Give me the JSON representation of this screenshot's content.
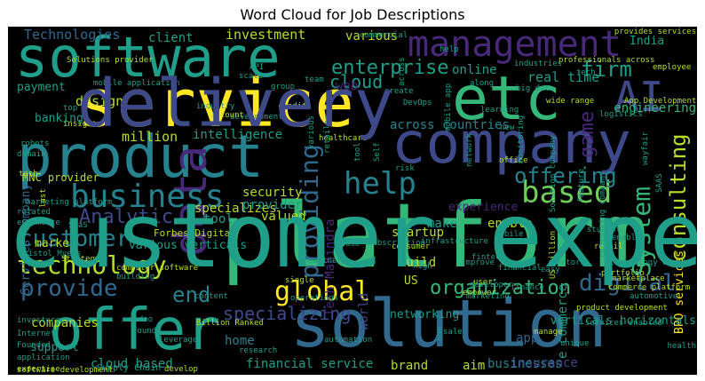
{
  "title": "Word Cloud for Job Descriptions",
  "palette": {
    "yellow": "#fde725",
    "yellowgreen": "#b5de2b",
    "lightgreen": "#6ece58",
    "green": "#35b779",
    "teal": "#1f9e89",
    "blueteal": "#26828e",
    "blue": "#31688e",
    "indigo": "#3e4989",
    "purple": "#482878",
    "darkpurple": "#440154",
    "background": "#000000"
  },
  "words": [
    {
      "text": "service",
      "color": "yellow"
    },
    {
      "text": "platform",
      "color": "green"
    },
    {
      "text": "solution",
      "color": "blue"
    },
    {
      "text": "company",
      "color": "indigo"
    },
    {
      "text": "product",
      "color": "blueteal"
    },
    {
      "text": "software",
      "color": "teal"
    },
    {
      "text": "offer",
      "color": "teal"
    },
    {
      "text": "etc",
      "color": "green"
    },
    {
      "text": "management",
      "color": "purple"
    },
    {
      "text": "AI",
      "color": "indigo"
    },
    {
      "text": "data",
      "color": "purple"
    },
    {
      "text": "business",
      "color": "blueteal"
    },
    {
      "text": "based",
      "color": "lightgreen"
    },
    {
      "text": "help",
      "color": "blueteal"
    },
    {
      "text": "technology",
      "color": "yellowgreen"
    },
    {
      "text": "customer",
      "color": "blueteal"
    },
    {
      "text": "provide",
      "color": "blue"
    },
    {
      "text": "global",
      "color": "yellow"
    },
    {
      "text": "digital",
      "color": "blue"
    },
    {
      "text": "organization",
      "color": "green"
    },
    {
      "text": "consulting",
      "color": "yellowgreen"
    },
    {
      "text": "System",
      "color": "green"
    },
    {
      "text": "providing",
      "color": "blue"
    },
    {
      "text": "offering",
      "color": "blueteal"
    },
    {
      "text": "enterprise",
      "color": "teal"
    },
    {
      "text": "end",
      "color": "blueteal"
    },
    {
      "text": "Analytic",
      "color": "indigo"
    },
    {
      "text": "firm",
      "color": "teal"
    },
    {
      "text": "game",
      "color": "purple"
    },
    {
      "text": "cloud",
      "color": "teal"
    },
    {
      "text": "specializing",
      "color": "indigo"
    },
    {
      "text": "investment",
      "color": "yellowgreen"
    },
    {
      "text": "Technologies",
      "color": "blue"
    },
    {
      "text": "client",
      "color": "teal"
    },
    {
      "text": "various",
      "color": "yellowgreen"
    },
    {
      "text": "India",
      "color": "teal"
    },
    {
      "text": "payment",
      "color": "teal"
    },
    {
      "text": "design",
      "color": "yellowgreen"
    },
    {
      "text": "banking",
      "color": "teal"
    },
    {
      "text": "million",
      "color": "yellowgreen"
    },
    {
      "text": "intelligence",
      "color": "teal"
    },
    {
      "text": "web",
      "color": "purple"
    },
    {
      "text": "real time",
      "color": "teal"
    },
    {
      "text": "online",
      "color": "teal"
    },
    {
      "text": "engineering",
      "color": "green"
    },
    {
      "text": "across countries",
      "color": "blueteal"
    },
    {
      "text": "specializes",
      "color": "yellowgreen"
    },
    {
      "text": "security",
      "color": "yellowgreen"
    },
    {
      "text": "provider",
      "color": "teal"
    },
    {
      "text": "valued",
      "color": "yellowgreen"
    },
    {
      "text": "tool",
      "color": "teal"
    },
    {
      "text": "market",
      "color": "yellowgreen"
    },
    {
      "text": "companies",
      "color": "yellowgreen"
    },
    {
      "text": "support",
      "color": "teal"
    },
    {
      "text": "cloud based",
      "color": "teal"
    },
    {
      "text": "financial service",
      "color": "teal"
    },
    {
      "text": "brand",
      "color": "yellowgreen"
    },
    {
      "text": "aim",
      "color": "yellowgreen"
    },
    {
      "text": "businesses",
      "color": "blueteal"
    },
    {
      "text": "insurance",
      "color": "indigo"
    },
    {
      "text": "home",
      "color": "blueteal"
    },
    {
      "text": "app",
      "color": "blue"
    },
    {
      "text": "world",
      "color": "indigo"
    },
    {
      "text": "networking",
      "color": "teal"
    },
    {
      "text": "build",
      "color": "yellowgreen"
    },
    {
      "text": "US",
      "color": "yellowgreen"
    },
    {
      "text": "startup",
      "color": "yellowgreen"
    },
    {
      "text": "Tech Mahindra",
      "color": "purple"
    },
    {
      "text": "make",
      "color": "teal"
    },
    {
      "text": "enable",
      "color": "yellowgreen"
    },
    {
      "text": "experience",
      "color": "purple"
    },
    {
      "text": "e commerce",
      "color": "teal"
    },
    {
      "text": "BPO services",
      "color": "yellow"
    },
    {
      "text": "verticals horizontals",
      "color": "teal"
    },
    {
      "text": "Services company",
      "color": "blue"
    },
    {
      "text": "various verticals",
      "color": "teal"
    },
    {
      "text": "MNC provider",
      "color": "yellowgreen"
    },
    {
      "text": "Forbes Digital",
      "color": "yellowgreen"
    },
    {
      "text": "Supply Chain",
      "color": "teal"
    },
    {
      "text": "software development",
      "color": "yellowgreen"
    },
    {
      "text": "application",
      "color": "teal"
    },
    {
      "text": "Internet",
      "color": "teal"
    },
    {
      "text": "expertise",
      "color": "yellowgreen"
    },
    {
      "text": "Founded",
      "color": "teal"
    },
    {
      "text": "investors",
      "color": "teal"
    },
    {
      "text": "SaaS",
      "color": "teal"
    },
    {
      "text": "healthcare",
      "color": "yellowgreen"
    },
    {
      "text": "development",
      "color": "teal"
    },
    {
      "text": "account",
      "color": "yellowgreen"
    },
    {
      "text": "industry",
      "color": "teal"
    },
    {
      "text": "credit",
      "color": "yellowgreen"
    },
    {
      "text": "Solutions provider",
      "color": "yellowgreen"
    },
    {
      "text": "professionals across",
      "color": "yellowgreen"
    },
    {
      "text": "employee",
      "color": "yellowgreen"
    },
    {
      "text": "industries",
      "color": "teal"
    },
    {
      "text": "App Development",
      "color": "yellowgreen"
    },
    {
      "text": "wide range",
      "color": "yellowgreen"
    },
    {
      "text": "logistics",
      "color": "teal"
    },
    {
      "text": "DevOps",
      "color": "teal"
    },
    {
      "text": "create",
      "color": "teal"
    },
    {
      "text": "fintech",
      "color": "teal"
    },
    {
      "text": "learning",
      "color": "teal"
    },
    {
      "text": "office",
      "color": "yellowgreen"
    },
    {
      "text": "Strategy",
      "color": "yellowgreen"
    },
    {
      "text": "Bristol Myers",
      "color": "teal"
    },
    {
      "text": "risk",
      "color": "teal"
    },
    {
      "text": "Billion Ranked",
      "color": "yellowgreen"
    },
    {
      "text": "student",
      "color": "teal"
    },
    {
      "text": "retail",
      "color": "yellowgreen"
    },
    {
      "text": "portfolio",
      "color": "yellowgreen"
    },
    {
      "text": "marketplace",
      "color": "yellowgreen"
    },
    {
      "text": "develop",
      "color": "yellowgreen"
    },
    {
      "text": "content",
      "color": "teal"
    },
    {
      "text": "research",
      "color": "teal"
    },
    {
      "text": "automation",
      "color": "teal"
    },
    {
      "text": "manage",
      "color": "yellowgreen"
    },
    {
      "text": "leverage",
      "color": "teal"
    },
    {
      "text": "improve",
      "color": "teal"
    },
    {
      "text": "financial",
      "color": "teal"
    },
    {
      "text": "mobile",
      "color": "teal"
    },
    {
      "text": "infrastructure",
      "color": "teal"
    },
    {
      "text": "subscription",
      "color": "teal"
    },
    {
      "text": "consumer",
      "color": "yellowgreen"
    },
    {
      "text": "partner",
      "color": "teal"
    },
    {
      "text": "operations",
      "color": "teal"
    },
    {
      "text": "high",
      "color": "teal"
    },
    {
      "text": "user",
      "color": "yellowgreen"
    },
    {
      "text": "empower",
      "color": "yellowgreen"
    },
    {
      "text": "related",
      "color": "teal"
    },
    {
      "text": "eCommerce",
      "color": "teal"
    },
    {
      "text": "robots",
      "color": "teal"
    },
    {
      "text": "domain",
      "color": "teal"
    },
    {
      "text": "insight",
      "color": "yellowgreen"
    },
    {
      "text": "computer software",
      "color": "yellowgreen"
    },
    {
      "text": "building",
      "color": "teal"
    },
    {
      "text": "single",
      "color": "yellowgreen"
    },
    {
      "text": "video",
      "color": "teal"
    },
    {
      "text": "Found",
      "color": "teal"
    },
    {
      "text": "sale",
      "color": "teal"
    },
    {
      "text": "one",
      "color": "teal"
    },
    {
      "text": "top",
      "color": "teal"
    },
    {
      "text": "tech",
      "color": "teal"
    },
    {
      "text": "big data",
      "color": "teal"
    },
    {
      "text": "team",
      "color": "teal"
    },
    {
      "text": "along",
      "color": "teal"
    },
    {
      "text": "new",
      "color": "teal"
    },
    {
      "text": "API",
      "color": "teal"
    },
    {
      "text": "scale",
      "color": "teal"
    },
    {
      "text": "group",
      "color": "teal"
    },
    {
      "text": "health",
      "color": "teal"
    },
    {
      "text": "use",
      "color": "teal"
    },
    {
      "text": "easy",
      "color": "teal"
    },
    {
      "text": "unique",
      "color": "teal"
    },
    {
      "text": "marketing",
      "color": "teal"
    },
    {
      "text": "finance",
      "color": "teal"
    },
    {
      "text": "developer",
      "color": "teal"
    },
    {
      "text": "sectors",
      "color": "teal"
    },
    {
      "text": "product development",
      "color": "yellowgreen"
    },
    {
      "text": "services enabled",
      "color": "teal"
    },
    {
      "text": "commerce platform",
      "color": "yellowgreen"
    },
    {
      "text": "technology enabled",
      "color": "teal"
    },
    {
      "text": "provides services",
      "color": "yellowgreen"
    },
    {
      "text": "enabled",
      "color": "teal"
    },
    {
      "text": "US Billion",
      "color": "yellowgreen"
    },
    {
      "text": "consulting company",
      "color": "teal"
    },
    {
      "text": "feature",
      "color": "teal"
    },
    {
      "text": "monitoring",
      "color": "teal"
    },
    {
      "text": "Solution company",
      "color": "teal"
    },
    {
      "text": "mobile app",
      "color": "teal"
    },
    {
      "text": "wayfair",
      "color": "teal"
    },
    {
      "text": "SAAS",
      "color": "teal"
    },
    {
      "text": "network",
      "color": "teal"
    },
    {
      "text": "marketing platform",
      "color": "teal"
    },
    {
      "text": "last",
      "color": "yellowgreen"
    },
    {
      "text": "tech",
      "color": "yellowgreen"
    },
    {
      "text": "tool",
      "color": "teal"
    },
    {
      "text": "Self",
      "color": "teal"
    },
    {
      "text": "commercial",
      "color": "teal"
    },
    {
      "text": "across",
      "color": "teal"
    },
    {
      "text": "help",
      "color": "teal"
    },
    {
      "text": "various",
      "color": "teal"
    },
    {
      "text": "retailer",
      "color": "teal"
    },
    {
      "text": "automotive",
      "color": "teal"
    },
    {
      "text": "mobile application",
      "color": "teal"
    },
    {
      "text": "delivery",
      "color": "indigo"
    },
    {
      "text": "customer experience",
      "color": "teal"
    }
  ]
}
